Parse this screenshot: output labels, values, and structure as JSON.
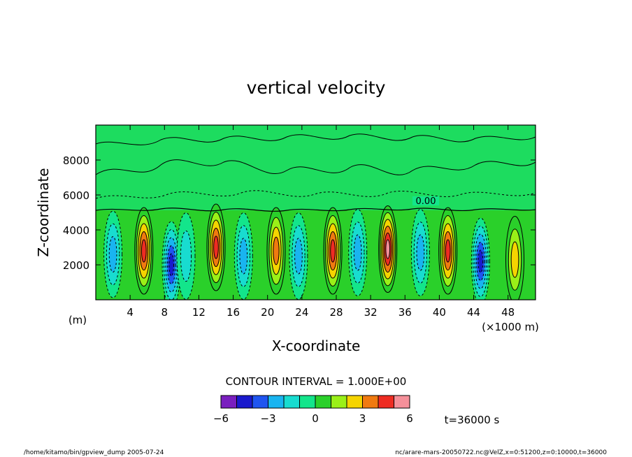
{
  "chart_data": {
    "type": "heatmap",
    "title": "vertical velocity",
    "xlabel": "X-coordinate",
    "ylabel": "Z-coordinate",
    "x_unit": "(×1000 m)",
    "y_unit": "(m)",
    "xlim": [
      0,
      51.2
    ],
    "ylim": [
      0,
      10000
    ],
    "x_ticks": [
      4,
      8,
      12,
      16,
      20,
      24,
      28,
      32,
      36,
      40,
      44,
      48
    ],
    "y_ticks": [
      2000,
      4000,
      6000,
      8000
    ],
    "contour_interval_text": "CONTOUR INTERVAL = 1.000E+00",
    "contour_label": "0.00",
    "time_label": "t=36000 s",
    "colorbar": {
      "levels": [
        -6,
        -5,
        -4,
        -3,
        -2,
        -1,
        0,
        1,
        2,
        3,
        4,
        5,
        6
      ],
      "tick_values": [
        -6,
        -3,
        0,
        3,
        6
      ],
      "tick_labels": [
        "−6",
        "−3",
        "0",
        "3",
        "6"
      ],
      "colors": [
        "#7a1fbf",
        "#1a1acd",
        "#1f55f0",
        "#19b4f0",
        "#18dcd0",
        "#13e58b",
        "#2ad02a",
        "#9af018",
        "#f5d400",
        "#f07a10",
        "#ee2c22",
        "#f5909a"
      ]
    },
    "cells": [
      {
        "x": 2.0,
        "z": 2600,
        "w": -2.5
      },
      {
        "x": 5.6,
        "z": 2800,
        "w": 4.5
      },
      {
        "x": 8.8,
        "z": 2000,
        "w": -4.5
      },
      {
        "x": 10.5,
        "z": 2500,
        "w": -2.0
      },
      {
        "x": 14.0,
        "z": 3000,
        "w": 4.2
      },
      {
        "x": 17.2,
        "z": 2500,
        "w": -2.5
      },
      {
        "x": 21.0,
        "z": 2800,
        "w": 4.0
      },
      {
        "x": 23.6,
        "z": 2500,
        "w": -2.5
      },
      {
        "x": 27.6,
        "z": 2800,
        "w": 4.8
      },
      {
        "x": 30.5,
        "z": 2700,
        "w": -2.8
      },
      {
        "x": 34.0,
        "z": 2900,
        "w": 5.2
      },
      {
        "x": 37.8,
        "z": 2700,
        "w": -2.7
      },
      {
        "x": 41.0,
        "z": 2800,
        "w": 4.8
      },
      {
        "x": 44.8,
        "z": 2200,
        "w": -4.2
      },
      {
        "x": 48.8,
        "z": 2300,
        "w": 3.0
      }
    ]
  },
  "footer_left": "/home/kitamo/bin/gpview_dump  2005-07-24",
  "footer_right": "nc/arare-mars-20050722.nc@VelZ,x=0:51200,z=0:10000,t=36000"
}
